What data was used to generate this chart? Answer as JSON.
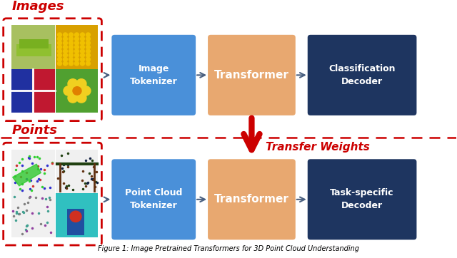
{
  "bg_color": "#ffffff",
  "fig_width": 6.4,
  "fig_height": 3.62,
  "blue_color": "#4A90D9",
  "orange_color": "#E8A870",
  "dark_blue_color": "#1E3560",
  "red_color": "#CC0000",
  "label_images": "Images",
  "label_points": "Points",
  "label_image_tokenizer": "Image\nTokenizer",
  "label_point_tokenizer": "Point Cloud\nTokenizer",
  "label_transformer_top": "Transformer",
  "label_transformer_bottom": "Transformer",
  "label_classification": "Classification\nDecoder",
  "label_task_specific": "Task-specific\nDecoder",
  "label_transfer": "Transfer Weights",
  "caption": "Figure 1: Image Pretrained Transformers for 3D Point Cloud Understanding"
}
